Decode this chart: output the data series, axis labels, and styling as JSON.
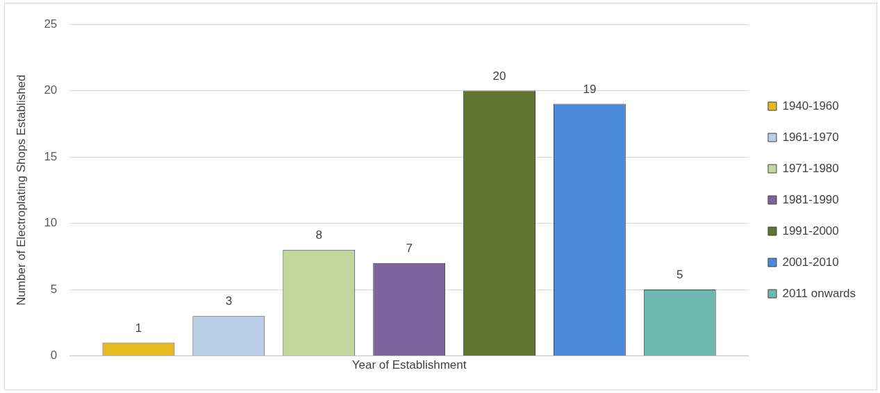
{
  "chart_data": {
    "type": "bar",
    "xlabel": "Year of Establishment",
    "ylabel": "Number of Electroplating Shops Established",
    "categories": [
      null
    ],
    "series": [
      {
        "name": "1940-1960",
        "color": "#e6b91e",
        "values": [
          1
        ]
      },
      {
        "name": "1961-1970",
        "color": "#b9cde5",
        "values": [
          3
        ]
      },
      {
        "name": "1971-1980",
        "color": "#c3d69b",
        "values": [
          8
        ]
      },
      {
        "name": "1981-1990",
        "color": "#7e649e",
        "values": [
          7
        ]
      },
      {
        "name": "1991-2000",
        "color": "#5f7530",
        "values": [
          20
        ]
      },
      {
        "name": "2001-2010",
        "color": "#4a8ad8",
        "values": [
          19
        ]
      },
      {
        "name": "2011 onwards",
        "color": "#6cb8b0",
        "values": [
          5
        ]
      }
    ],
    "ylim": [
      0,
      25
    ],
    "yticks": [
      0,
      5,
      10,
      15,
      20,
      25
    ],
    "grid": "y",
    "legend": "right",
    "tick_labels": "y",
    "data_labels": true
  }
}
